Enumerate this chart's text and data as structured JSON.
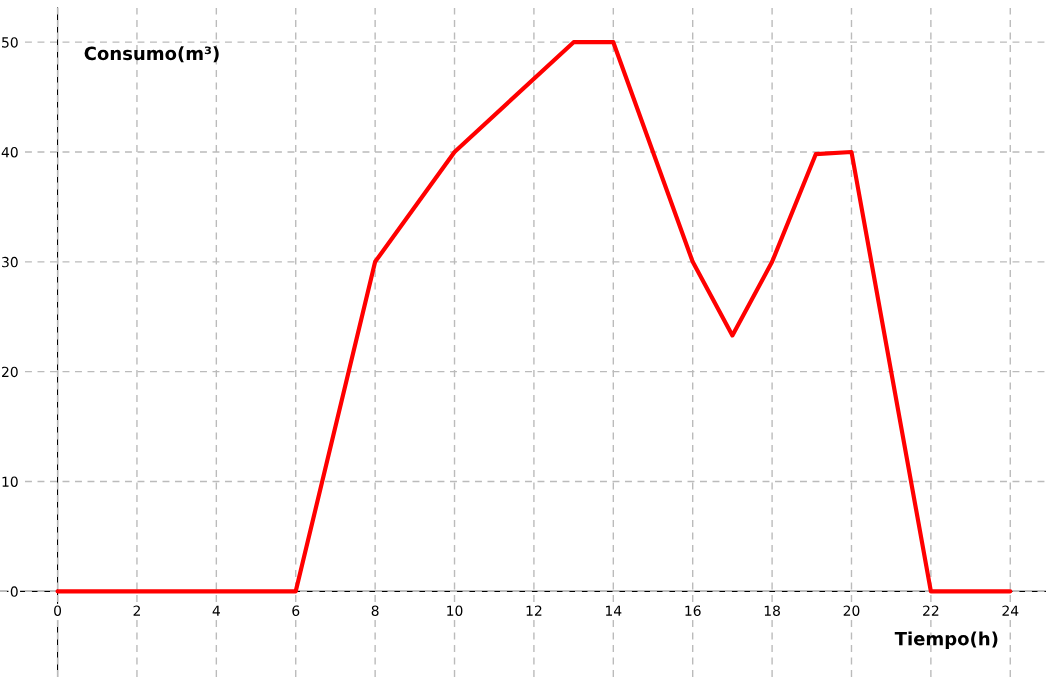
{
  "chart_data": {
    "type": "line",
    "xlabel": "Tiempo(h)",
    "ylabel": "Consumo(m³)",
    "x": [
      0,
      6,
      8,
      10,
      13,
      14,
      16,
      17,
      18,
      19.1,
      20,
      22,
      24
    ],
    "series": [
      {
        "color": "#ff0000",
        "values": [
          0,
          0,
          30,
          40,
          50,
          50,
          30,
          23.3,
          30,
          39.8,
          40,
          0,
          0
        ]
      }
    ],
    "xlim": [
      -1.45,
      24.9
    ],
    "ylim": [
      -7.8,
      53.1
    ],
    "xticks": [
      0,
      2,
      4,
      6,
      8,
      10,
      12,
      14,
      16,
      18,
      20,
      22,
      24
    ],
    "yticks": [
      0,
      10,
      20,
      30,
      40,
      50
    ],
    "grid": true,
    "marker": "none",
    "line_style": "solid"
  }
}
